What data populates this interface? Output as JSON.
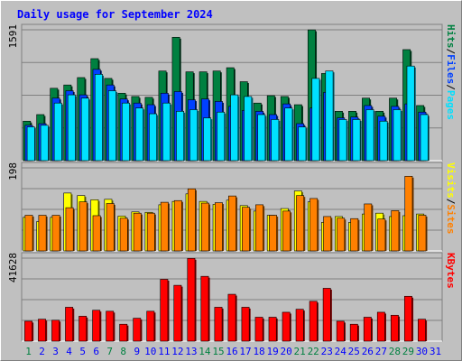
{
  "colors": {
    "background": "#c0c0c0",
    "hits": "#008040",
    "files": "#0040ff",
    "pages": "#00e0ff",
    "visits": "#ffff00",
    "sites": "#ff8000",
    "kbytes": "#ff0000",
    "title": "#0000ff",
    "day_weekend": "#008040",
    "day_normal": "#0000ff"
  },
  "chart_data": {
    "title": "Daily usage for September 2024",
    "type": "bar",
    "categories": [
      "1",
      "2",
      "3",
      "4",
      "5",
      "6",
      "7",
      "8",
      "9",
      "10",
      "11",
      "12",
      "13",
      "14",
      "15",
      "16",
      "17",
      "18",
      "19",
      "20",
      "21",
      "22",
      "23",
      "24",
      "25",
      "26",
      "27",
      "28",
      "29",
      "30",
      "31"
    ],
    "weekend_days": [
      "1",
      "7",
      "8",
      "14",
      "15",
      "21",
      "22",
      "28",
      "29"
    ],
    "panels": [
      {
        "id": "hits",
        "max_label": "1591",
        "ylim": [
          0,
          1591
        ],
        "legend": [
          "Pages",
          "/",
          "Files",
          "/",
          "Hits"
        ],
        "series": [
          {
            "name": "Hits",
            "color": "#008040",
            "values": [
              480,
              560,
              880,
              920,
              1010,
              1240,
              1000,
              820,
              780,
              770,
              1090,
              1500,
              1080,
              1080,
              1090,
              1130,
              960,
              700,
              790,
              780,
              680,
              1590,
              1060,
              600,
              600,
              760,
              600,
              760,
              1350,
              670,
              0
            ]
          },
          {
            "name": "Files",
            "color": "#0040ff",
            "values": [
              430,
              450,
              760,
              850,
              800,
              1110,
              920,
              750,
              700,
              680,
              820,
              840,
              740,
              750,
              720,
              660,
              610,
              600,
              560,
              690,
              450,
              640,
              830,
              520,
              530,
              670,
              540,
              660,
              690,
              590,
              0
            ]
          },
          {
            "name": "Pages",
            "color": "#00e0ff",
            "values": [
              410,
              430,
              700,
              800,
              760,
              1050,
              850,
              700,
              640,
              570,
              700,
              600,
              620,
              520,
              590,
              800,
              780,
              560,
              500,
              640,
              410,
              1000,
              1090,
              500,
              500,
              620,
              480,
              620,
              1150,
              560,
              0
            ]
          }
        ]
      },
      {
        "id": "visits",
        "max_label": "198",
        "ylim": [
          0,
          198
        ],
        "legend": [
          "Sites",
          "/",
          "Visits"
        ],
        "series": [
          {
            "name": "Visits",
            "color": "#ffff00",
            "values": [
              80,
              70,
              80,
              138,
              132,
              122,
              123,
              83,
              93,
              92,
              110,
              118,
              136,
              118,
              111,
              121,
              108,
              95,
              85,
              101,
              143,
              117,
              68,
              82,
              68,
              88,
              90,
              82,
              84,
              88,
              0
            ]
          },
          {
            "name": "Sites",
            "color": "#ff8000",
            "values": [
              85,
              85,
              85,
              103,
              117,
              84,
              113,
              78,
              90,
              90,
              116,
              120,
              148,
              114,
              115,
              131,
              104,
              110,
              85,
              95,
              132,
              125,
              82,
              78,
              77,
              112,
              76,
              96,
              178,
              85,
              0
            ]
          }
        ]
      },
      {
        "id": "kbytes",
        "max_label": "41628",
        "ylim": [
          0,
          41628
        ],
        "legend": [
          "KBytes"
        ],
        "series": [
          {
            "name": "KBytes",
            "color": "#ff0000",
            "values": [
              10000,
              11000,
              10500,
              17000,
              12500,
              15500,
              15000,
              8500,
              11500,
              15000,
              31000,
              28000,
              41500,
              32500,
              17000,
              23500,
              17000,
              12000,
              12000,
              14500,
              16000,
              20000,
              26500,
              10000,
              8500,
              12000,
              14500,
              13000,
              22500,
              11000,
              0
            ]
          }
        ]
      }
    ]
  }
}
